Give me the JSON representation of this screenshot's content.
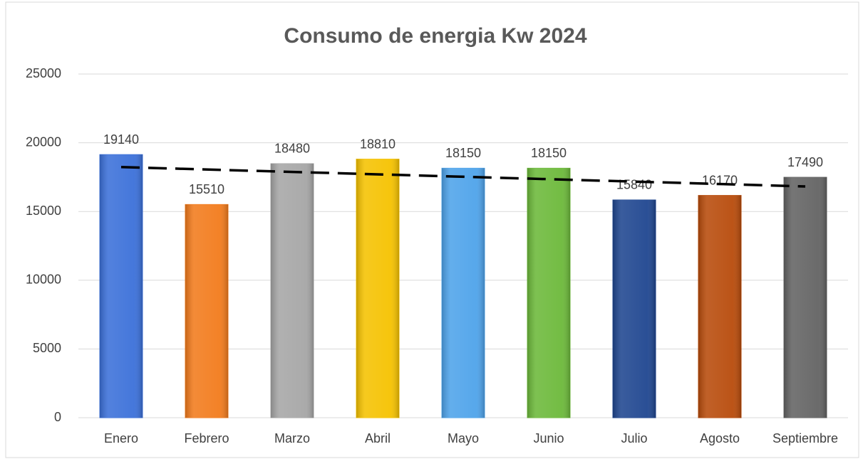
{
  "chart_data": {
    "type": "bar",
    "title": "Consumo de energia Kw 2024",
    "categories": [
      "Enero",
      "Febrero",
      "Marzo",
      "Abril",
      "Mayo",
      "Junio",
      "Julio",
      "Agosto",
      "Septiembre"
    ],
    "values": [
      19140,
      15510,
      18480,
      18810,
      18150,
      18150,
      15840,
      16170,
      17490
    ],
    "colors": [
      "#3b70d9",
      "#f27b1c",
      "#a6a6a6",
      "#f5c200",
      "#4ea3ea",
      "#6cb93a",
      "#1f4690",
      "#b84b0b",
      "#636363"
    ],
    "ylim": [
      0,
      25000
    ],
    "yticks": [
      0,
      5000,
      10000,
      15000,
      20000,
      25000
    ],
    "grid": true,
    "data_labels": true,
    "trendline": "linear",
    "trendline_color": "#000000"
  }
}
